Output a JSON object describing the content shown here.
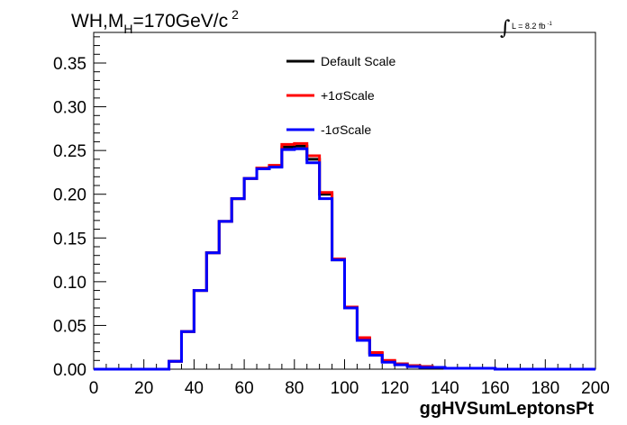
{
  "chart_data": {
    "type": "line",
    "title": "WH,M",
    "title_sub": "H",
    "title_rest": "=170GeV/c",
    "title_sup": "2",
    "lumi_label": "L = 8.2 fb",
    "lumi_sup": "-1",
    "xlabel": "ggHVSumLeptonsPt",
    "ylabel": "",
    "xlim": [
      0,
      200
    ],
    "ylim": [
      0,
      0.385
    ],
    "x_ticks": [
      "0",
      "20",
      "40",
      "60",
      "80",
      "100",
      "120",
      "140",
      "160",
      "180",
      "200"
    ],
    "y_ticks": [
      "0.00",
      "0.05",
      "0.10",
      "0.15",
      "0.20",
      "0.25",
      "0.30",
      "0.35"
    ],
    "grid": false,
    "legend_position": "top-center",
    "bin_edges": [
      0,
      5,
      10,
      15,
      20,
      25,
      30,
      35,
      40,
      45,
      50,
      55,
      60,
      65,
      70,
      75,
      80,
      85,
      90,
      95,
      100,
      105,
      110,
      115,
      120,
      125,
      130,
      135,
      140,
      145,
      150,
      155,
      160,
      165,
      170,
      175,
      180,
      185,
      190,
      195,
      200
    ],
    "series": [
      {
        "name": "Default Scale",
        "color": "#000000",
        "values": [
          0,
          0,
          0,
          0,
          0,
          0,
          0.009,
          0.043,
          0.09,
          0.133,
          0.169,
          0.195,
          0.218,
          0.229,
          0.232,
          0.254,
          0.255,
          0.24,
          0.2,
          0.125,
          0.07,
          0.035,
          0.018,
          0.009,
          0.006,
          0.004,
          0.003,
          0.002,
          0.001,
          0.001,
          0.001,
          0.001,
          0,
          0,
          0,
          0,
          0,
          0,
          0,
          0
        ]
      },
      {
        "name": "+1σScale",
        "color": "#ff0000",
        "values": [
          0,
          0,
          0,
          0,
          0,
          0,
          0.009,
          0.043,
          0.09,
          0.133,
          0.169,
          0.195,
          0.218,
          0.23,
          0.233,
          0.257,
          0.258,
          0.244,
          0.202,
          0.126,
          0.071,
          0.036,
          0.019,
          0.01,
          0.006,
          0.004,
          0.003,
          0.002,
          0.001,
          0.001,
          0.001,
          0.001,
          0,
          0,
          0,
          0,
          0,
          0,
          0,
          0
        ]
      },
      {
        "name": "-1σScale",
        "color": "#0000ff",
        "values": [
          0,
          0,
          0,
          0,
          0,
          0,
          0.009,
          0.043,
          0.09,
          0.133,
          0.169,
          0.195,
          0.218,
          0.229,
          0.231,
          0.251,
          0.252,
          0.236,
          0.195,
          0.125,
          0.07,
          0.033,
          0.016,
          0.008,
          0.005,
          0.003,
          0.002,
          0.002,
          0.001,
          0.001,
          0.001,
          0.001,
          0,
          0,
          0,
          0,
          0,
          0,
          0,
          0
        ]
      }
    ]
  }
}
